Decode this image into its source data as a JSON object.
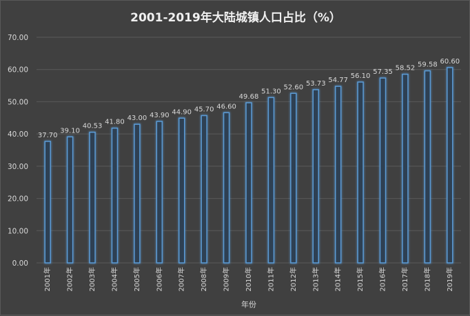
{
  "chart_data": {
    "type": "bar",
    "title": "2001-2019年大陆城镇人口占比（%）",
    "xlabel": "年份",
    "ylabel": "",
    "ylim": [
      0,
      70
    ],
    "yticks": [
      "0.00",
      "10.00",
      "20.00",
      "30.00",
      "40.00",
      "50.00",
      "60.00",
      "70.00"
    ],
    "grid": true,
    "categories": [
      "2001年",
      "2002年",
      "2003年",
      "2004年",
      "2005年",
      "2006年",
      "2007年",
      "2008年",
      "2009年",
      "2010年",
      "2011年",
      "2012年",
      "2013年",
      "2014年",
      "2015年",
      "2016年",
      "2017年",
      "2018年",
      "2019年"
    ],
    "values": [
      37.7,
      39.1,
      40.53,
      41.8,
      43.0,
      43.9,
      44.9,
      45.7,
      46.6,
      49.68,
      51.3,
      52.6,
      53.73,
      54.77,
      56.1,
      57.35,
      58.52,
      59.58,
      60.6
    ],
    "value_labels": [
      "37.70",
      "39.10",
      "40.53",
      "41.80",
      "43.00",
      "43.90",
      "44.90",
      "45.70",
      "46.60",
      "49.68",
      "51.30",
      "52.60",
      "53.73",
      "54.77",
      "56.10",
      "57.35",
      "58.52",
      "59.58",
      "60.60"
    ],
    "colors": {
      "bar_stroke": "#5b9bd5",
      "bar_fill": "#2f3f52",
      "grid": "#5a5a5a",
      "text": "#d9d9d9"
    }
  }
}
